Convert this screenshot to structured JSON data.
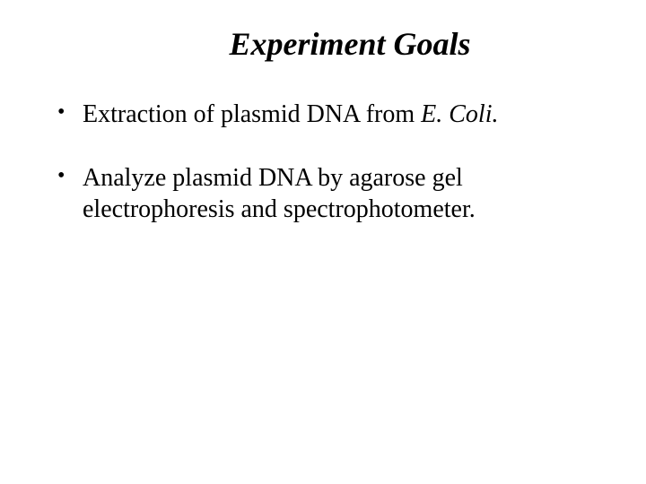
{
  "slide": {
    "title": "Experiment Goals",
    "title_fontsize": 36,
    "title_fontstyle": "italic",
    "title_fontweight": "bold",
    "background_color": "#ffffff",
    "text_color": "#000000",
    "font_family": "Times New Roman",
    "bullets": [
      {
        "segments": [
          {
            "text": "Extraction of plasmid DNA from ",
            "italic": false
          },
          {
            "text": "E. Coli.",
            "italic": true
          }
        ]
      },
      {
        "segments": [
          {
            "text": "Analyze plasmid DNA by agarose gel electrophoresis and spectrophotometer.",
            "italic": false
          }
        ]
      }
    ],
    "bullet_fontsize": 28,
    "bullet_marker": "•"
  }
}
